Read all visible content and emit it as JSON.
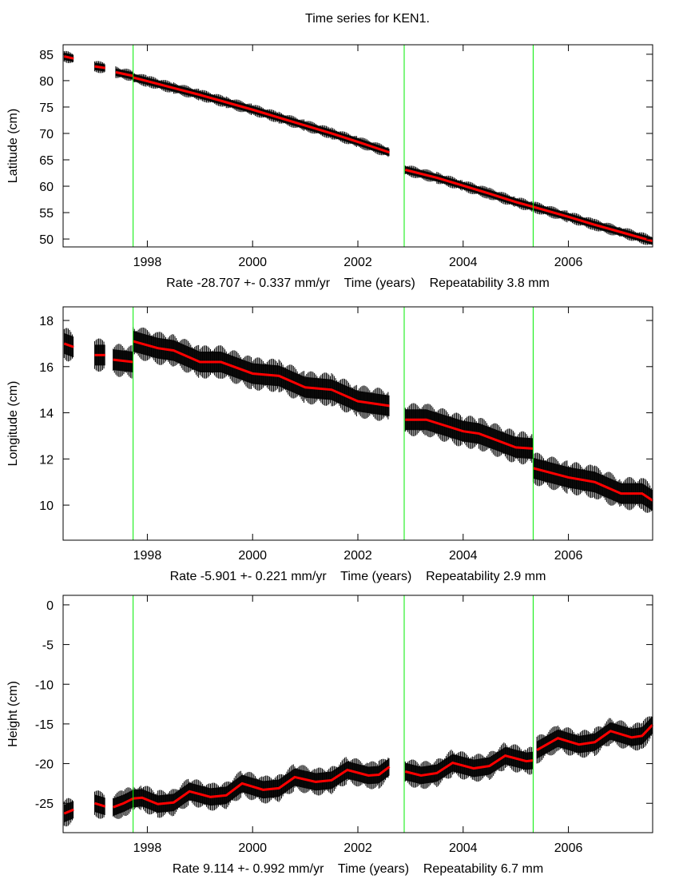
{
  "title": "Time series for KEN1.",
  "chart_data": [
    {
      "type": "line",
      "ylabel": "Latitude (cm)",
      "xlabel_parts": [
        "Rate -28.707 +- 0.337 mm/yr",
        "Time (years)",
        "Repeatability 3.8 mm"
      ],
      "xlim": [
        1996.4,
        2007.6
      ],
      "ylim": [
        48.5,
        86.8
      ],
      "xticks": [
        1998,
        2000,
        2002,
        2004,
        2006
      ],
      "yticks": [
        50,
        55,
        60,
        65,
        70,
        75,
        80,
        85
      ],
      "breaks": [
        1997.73,
        2002.88,
        2005.33
      ],
      "band_halfwidth": 0.7,
      "fit_segments": [
        [
          [
            1996.42,
            84.6
          ],
          [
            1996.6,
            84.2
          ]
        ],
        [
          [
            1997.0,
            82.7
          ],
          [
            1997.2,
            82.4
          ]
        ],
        [
          [
            1997.4,
            81.6
          ],
          [
            1997.73,
            80.9
          ]
        ],
        [
          [
            1997.73,
            80.6
          ],
          [
            1998.0,
            79.9
          ],
          [
            1998.5,
            78.6
          ],
          [
            1999.0,
            77.3
          ],
          [
            1999.5,
            75.9
          ],
          [
            2000.0,
            74.5
          ],
          [
            2000.5,
            73.0
          ],
          [
            2001.0,
            71.5
          ],
          [
            2001.5,
            70.0
          ],
          [
            2002.0,
            68.4
          ],
          [
            2002.6,
            66.4
          ]
        ],
        [
          [
            2002.9,
            63.1
          ],
          [
            2003.5,
            61.6
          ],
          [
            2004.0,
            60.1
          ],
          [
            2004.5,
            58.6
          ],
          [
            2005.0,
            57.0
          ],
          [
            2005.33,
            56.1
          ]
        ],
        [
          [
            2005.33,
            56.1
          ],
          [
            2006.0,
            54.2
          ],
          [
            2006.5,
            52.7
          ],
          [
            2007.0,
            51.3
          ],
          [
            2007.6,
            49.6
          ]
        ]
      ]
    },
    {
      "type": "line",
      "ylabel": "Longitude (cm)",
      "xlabel_parts": [
        "Rate -5.901 +- 0.221 mm/yr",
        "Time (years)",
        "Repeatability 2.9 mm"
      ],
      "xlim": [
        1996.4,
        2007.6
      ],
      "ylim": [
        8.48,
        18.59
      ],
      "xticks": [
        1998,
        2000,
        2002,
        2004,
        2006
      ],
      "yticks": [
        10,
        12,
        14,
        16,
        18
      ],
      "breaks": [
        1997.73,
        2002.88,
        2005.33
      ],
      "band_halfwidth": 0.45,
      "fit_segments": [
        [
          [
            1996.42,
            17.0
          ],
          [
            1996.6,
            16.85
          ]
        ],
        [
          [
            1997.0,
            16.5
          ],
          [
            1997.2,
            16.5
          ]
        ],
        [
          [
            1997.35,
            16.3
          ],
          [
            1997.73,
            16.2
          ]
        ],
        [
          [
            1997.73,
            17.1
          ],
          [
            1998.2,
            16.8
          ],
          [
            1998.5,
            16.7
          ],
          [
            1999.0,
            16.2
          ],
          [
            1999.4,
            16.2
          ],
          [
            2000.0,
            15.7
          ],
          [
            2000.5,
            15.6
          ],
          [
            2001.0,
            15.1
          ],
          [
            2001.5,
            15.0
          ],
          [
            2002.0,
            14.5
          ],
          [
            2002.6,
            14.3
          ]
        ],
        [
          [
            2002.9,
            13.7
          ],
          [
            2003.3,
            13.7
          ],
          [
            2004.0,
            13.2
          ],
          [
            2004.3,
            13.1
          ],
          [
            2005.0,
            12.5
          ],
          [
            2005.33,
            12.45
          ]
        ],
        [
          [
            2005.33,
            11.6
          ],
          [
            2006.0,
            11.2
          ],
          [
            2006.5,
            11.0
          ],
          [
            2007.0,
            10.5
          ],
          [
            2007.4,
            10.5
          ],
          [
            2007.6,
            10.2
          ]
        ]
      ]
    },
    {
      "type": "line",
      "ylabel": "Height (cm)",
      "xlabel_parts": [
        "Rate 9.114 +- 0.992 mm/yr",
        "Time (years)",
        "Repeatability 6.7 mm"
      ],
      "xlim": [
        1996.4,
        2007.6
      ],
      "ylim": [
        -28.7,
        1.2
      ],
      "xticks": [
        1998,
        2000,
        2002,
        2004,
        2006
      ],
      "yticks": [
        0,
        -5,
        -10,
        -15,
        -20,
        -25
      ],
      "breaks": [
        1997.73,
        2002.88,
        2005.33
      ],
      "band_halfwidth": 1.1,
      "fit_segments": [
        [
          [
            1996.42,
            -26.3
          ],
          [
            1996.6,
            -25.8
          ]
        ],
        [
          [
            1997.0,
            -25.0
          ],
          [
            1997.2,
            -25.4
          ]
        ],
        [
          [
            1997.35,
            -25.5
          ],
          [
            1997.55,
            -25.0
          ],
          [
            1997.73,
            -24.4
          ]
        ],
        [
          [
            1997.73,
            -24.4
          ],
          [
            1997.9,
            -24.3
          ],
          [
            1998.2,
            -25.1
          ],
          [
            1998.5,
            -24.9
          ],
          [
            1998.8,
            -23.5
          ],
          [
            1999.2,
            -24.2
          ],
          [
            1999.5,
            -24.0
          ],
          [
            1999.8,
            -22.5
          ],
          [
            2000.2,
            -23.3
          ],
          [
            2000.5,
            -23.1
          ],
          [
            2000.8,
            -21.7
          ],
          [
            2001.2,
            -22.3
          ],
          [
            2001.5,
            -22.1
          ],
          [
            2001.8,
            -20.8
          ],
          [
            2002.2,
            -21.5
          ],
          [
            2002.4,
            -21.4
          ],
          [
            2002.6,
            -20.4
          ]
        ],
        [
          [
            2002.9,
            -21.0
          ],
          [
            2003.2,
            -21.5
          ],
          [
            2003.5,
            -21.2
          ],
          [
            2003.8,
            -19.9
          ],
          [
            2004.2,
            -20.6
          ],
          [
            2004.5,
            -20.3
          ],
          [
            2004.8,
            -19.0
          ],
          [
            2005.2,
            -19.7
          ],
          [
            2005.33,
            -19.6
          ]
        ],
        [
          [
            2005.4,
            -18.3
          ],
          [
            2005.8,
            -16.8
          ],
          [
            2006.2,
            -17.6
          ],
          [
            2006.5,
            -17.3
          ],
          [
            2006.8,
            -15.9
          ],
          [
            2007.2,
            -16.7
          ],
          [
            2007.4,
            -16.5
          ],
          [
            2007.6,
            -15.1
          ]
        ]
      ]
    }
  ],
  "colors": {
    "fit": "#ff0000",
    "data": "#000000",
    "breaks": "#00ee00",
    "frame": "#000000"
  }
}
